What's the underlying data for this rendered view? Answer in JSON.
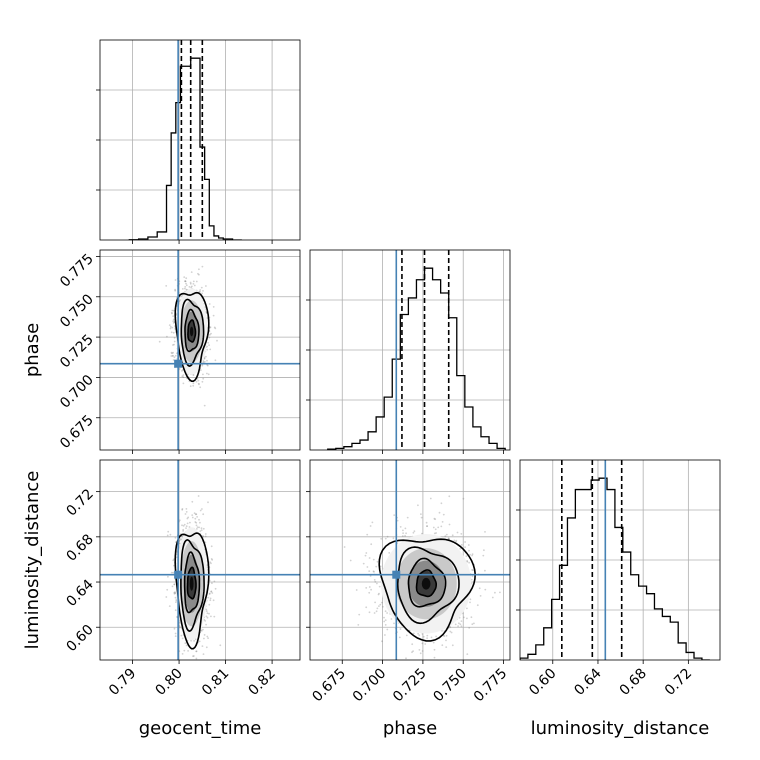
{
  "chart_data": {
    "type": "corner",
    "parameters": [
      "geocent_time",
      "phase",
      "luminosity_distance"
    ],
    "truths": {
      "geocent_time": 0.7998,
      "phase": 0.7085,
      "luminosity_distance": 0.6465
    },
    "colors": {
      "truth": "#4682b4",
      "hist": "#000000",
      "grid": "#b0b0b0",
      "scatter": "#7f7f7f"
    },
    "axes": {
      "geocent_time": {
        "label": "geocent_time",
        "range": [
          0.783,
          0.826
        ],
        "ticks": [
          0.79,
          0.8,
          0.81,
          0.82
        ],
        "tick_labels": [
          "0.79",
          "0.80",
          "0.81",
          "0.82"
        ]
      },
      "phase": {
        "label": "phase",
        "range": [
          0.655,
          0.779
        ],
        "ticks": [
          0.675,
          0.7,
          0.725,
          0.75,
          0.775
        ],
        "tick_labels": [
          "0.675",
          "0.700",
          "0.725",
          "0.750",
          "0.775"
        ]
      },
      "luminosity_distance": {
        "label": "luminosity_distance",
        "range": [
          0.571,
          0.748
        ],
        "ticks": [
          0.6,
          0.64,
          0.68,
          0.72
        ],
        "tick_labels": [
          "0.60",
          "0.64",
          "0.68",
          "0.72"
        ]
      }
    },
    "marginals": {
      "geocent_time": {
        "quantiles": [
          0.8005,
          0.8025,
          0.805
        ],
        "bin_edges": [
          0.7893,
          0.7913,
          0.7933,
          0.7953,
          0.7973,
          0.7983,
          0.7993,
          0.8003,
          0.8015,
          0.8025,
          0.8035,
          0.8045,
          0.8055,
          0.8065,
          0.8075,
          0.8085,
          0.8095,
          0.8115,
          0.8135
        ],
        "counts": [
          0.1,
          0.5,
          1.5,
          4,
          27,
          53,
          68,
          86,
          86,
          90,
          90,
          46,
          30,
          7,
          2,
          1,
          0.5,
          0
        ]
      },
      "phase": {
        "quantiles": [
          0.712,
          0.726,
          0.741
        ],
        "bin_edges": [
          0.666,
          0.671,
          0.676,
          0.681,
          0.686,
          0.691,
          0.696,
          0.701,
          0.706,
          0.711,
          0.716,
          0.721,
          0.726,
          0.731,
          0.736,
          0.741,
          0.746,
          0.751,
          0.756,
          0.761,
          0.766,
          0.771,
          0.776
        ],
        "counts": [
          0.5,
          1,
          2,
          4,
          6,
          11,
          20,
          32,
          55,
          82,
          92,
          103,
          110,
          103,
          95,
          80,
          45,
          26,
          14,
          8,
          4,
          1
        ]
      },
      "luminosity_distance": {
        "quantiles": [
          0.608,
          0.635,
          0.661
        ],
        "bin_edges": [
          0.571,
          0.578,
          0.585,
          0.592,
          0.599,
          0.606,
          0.613,
          0.62,
          0.627,
          0.634,
          0.641,
          0.648,
          0.655,
          0.662,
          0.669,
          0.676,
          0.683,
          0.69,
          0.697,
          0.704,
          0.711,
          0.718,
          0.725,
          0.732,
          0.739
        ],
        "counts": [
          1,
          3,
          8,
          17,
          32,
          50,
          75,
          90,
          90,
          95,
          96,
          90,
          70,
          57,
          45,
          39,
          35,
          27,
          23,
          20,
          9,
          4,
          1,
          0
        ]
      }
    },
    "joint": {
      "phase_vs_geocent_time": {
        "center": [
          0.8027,
          0.7285
        ],
        "contour_radii": [
          [
            0.0008,
            0.0067
          ],
          [
            0.0015,
            0.0124
          ],
          [
            0.0024,
            0.0193
          ],
          [
            0.0034,
            0.0268
          ]
        ]
      },
      "luminosity_distance_vs_geocent_time": {
        "center": [
          0.8027,
          0.6385
        ],
        "contour_radii": [
          [
            0.0009,
            0.0137
          ],
          [
            0.0016,
            0.0256
          ],
          [
            0.0025,
            0.0377
          ],
          [
            0.0034,
            0.05
          ]
        ]
      },
      "luminosity_distance_vs_phase": {
        "center": [
          0.727,
          0.6385
        ],
        "contour_radii": [
          [
            0.006,
            0.0115
          ],
          [
            0.0115,
            0.0205
          ],
          [
            0.019,
            0.0315
          ],
          [
            0.028,
            0.044
          ]
        ]
      }
    }
  }
}
